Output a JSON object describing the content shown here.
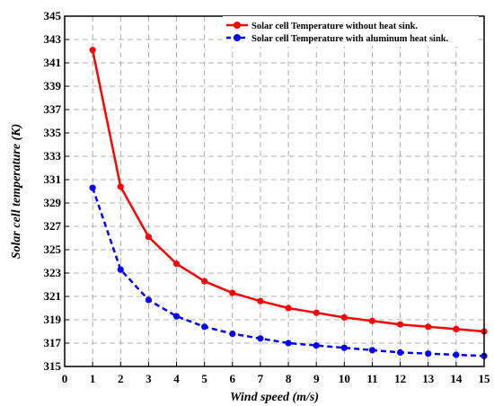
{
  "chart_data": {
    "type": "line",
    "xlabel": "Wind speed (m/s)",
    "ylabel": "Solar cell temperature (K)",
    "xlim": [
      0,
      15
    ],
    "ylim": [
      315,
      345
    ],
    "xticks": [
      "0",
      "1",
      "2",
      "3",
      "4",
      "5",
      "6",
      "7",
      "8",
      "9",
      "10",
      "11",
      "12",
      "13",
      "14",
      "15"
    ],
    "yticks": [
      "315",
      "317",
      "319",
      "321",
      "323",
      "325",
      "327",
      "329",
      "331",
      "333",
      "335",
      "337",
      "339",
      "341",
      "343",
      "345"
    ],
    "grid": true,
    "legend_position": "top-right",
    "x": [
      1,
      2,
      3,
      4,
      5,
      6,
      7,
      8,
      9,
      10,
      11,
      12,
      13,
      14,
      15
    ],
    "series": [
      {
        "name": "Solar cell Temperature without heat sink.",
        "color": "#ff0000",
        "style": "solid",
        "values": [
          342.1,
          330.4,
          326.1,
          323.8,
          322.3,
          321.3,
          320.6,
          320.0,
          319.6,
          319.2,
          318.9,
          318.6,
          318.4,
          318.2,
          318.0
        ]
      },
      {
        "name": "Solar cell Temperature with aluminum heat sink.",
        "color": "#0000ff",
        "style": "dashed",
        "values": [
          330.3,
          323.3,
          320.7,
          319.3,
          318.4,
          317.8,
          317.4,
          317.0,
          316.8,
          316.6,
          316.4,
          316.2,
          316.1,
          316.0,
          315.9
        ]
      }
    ]
  }
}
